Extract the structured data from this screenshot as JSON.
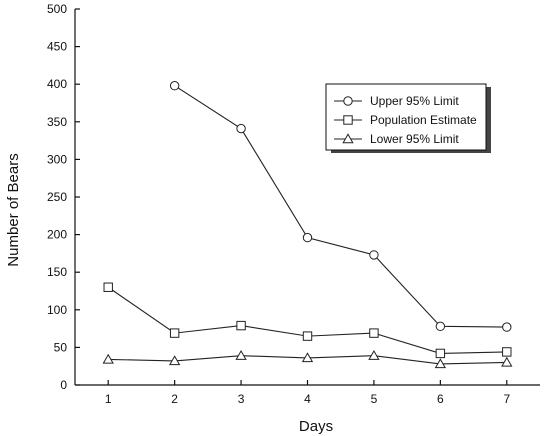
{
  "chart_data": {
    "type": "line",
    "xlabel": "Days",
    "ylabel": "Number of Bears",
    "xlim": [
      0.5,
      7.5
    ],
    "ylim": [
      0,
      500
    ],
    "x_ticks": [
      1,
      2,
      3,
      4,
      5,
      6,
      7
    ],
    "y_ticks": [
      0,
      50,
      100,
      150,
      200,
      250,
      300,
      350,
      400,
      450,
      500
    ],
    "grid": false,
    "legend_position": "top-right",
    "series": [
      {
        "name": "Upper 95% Limit",
        "marker": "circle",
        "x": [
          2,
          3,
          4,
          5,
          6,
          7
        ],
        "y": [
          398,
          341,
          196,
          173,
          78,
          77
        ]
      },
      {
        "name": "Population Estimate",
        "marker": "square",
        "x": [
          1,
          2,
          3,
          4,
          5,
          6,
          7
        ],
        "y": [
          130,
          69,
          79,
          65,
          69,
          42,
          44
        ]
      },
      {
        "name": "Lower 95% Limit",
        "marker": "triangle",
        "x": [
          1,
          2,
          3,
          4,
          5,
          6,
          7
        ],
        "y": [
          34,
          32,
          39,
          36,
          39,
          28,
          30
        ]
      }
    ]
  }
}
